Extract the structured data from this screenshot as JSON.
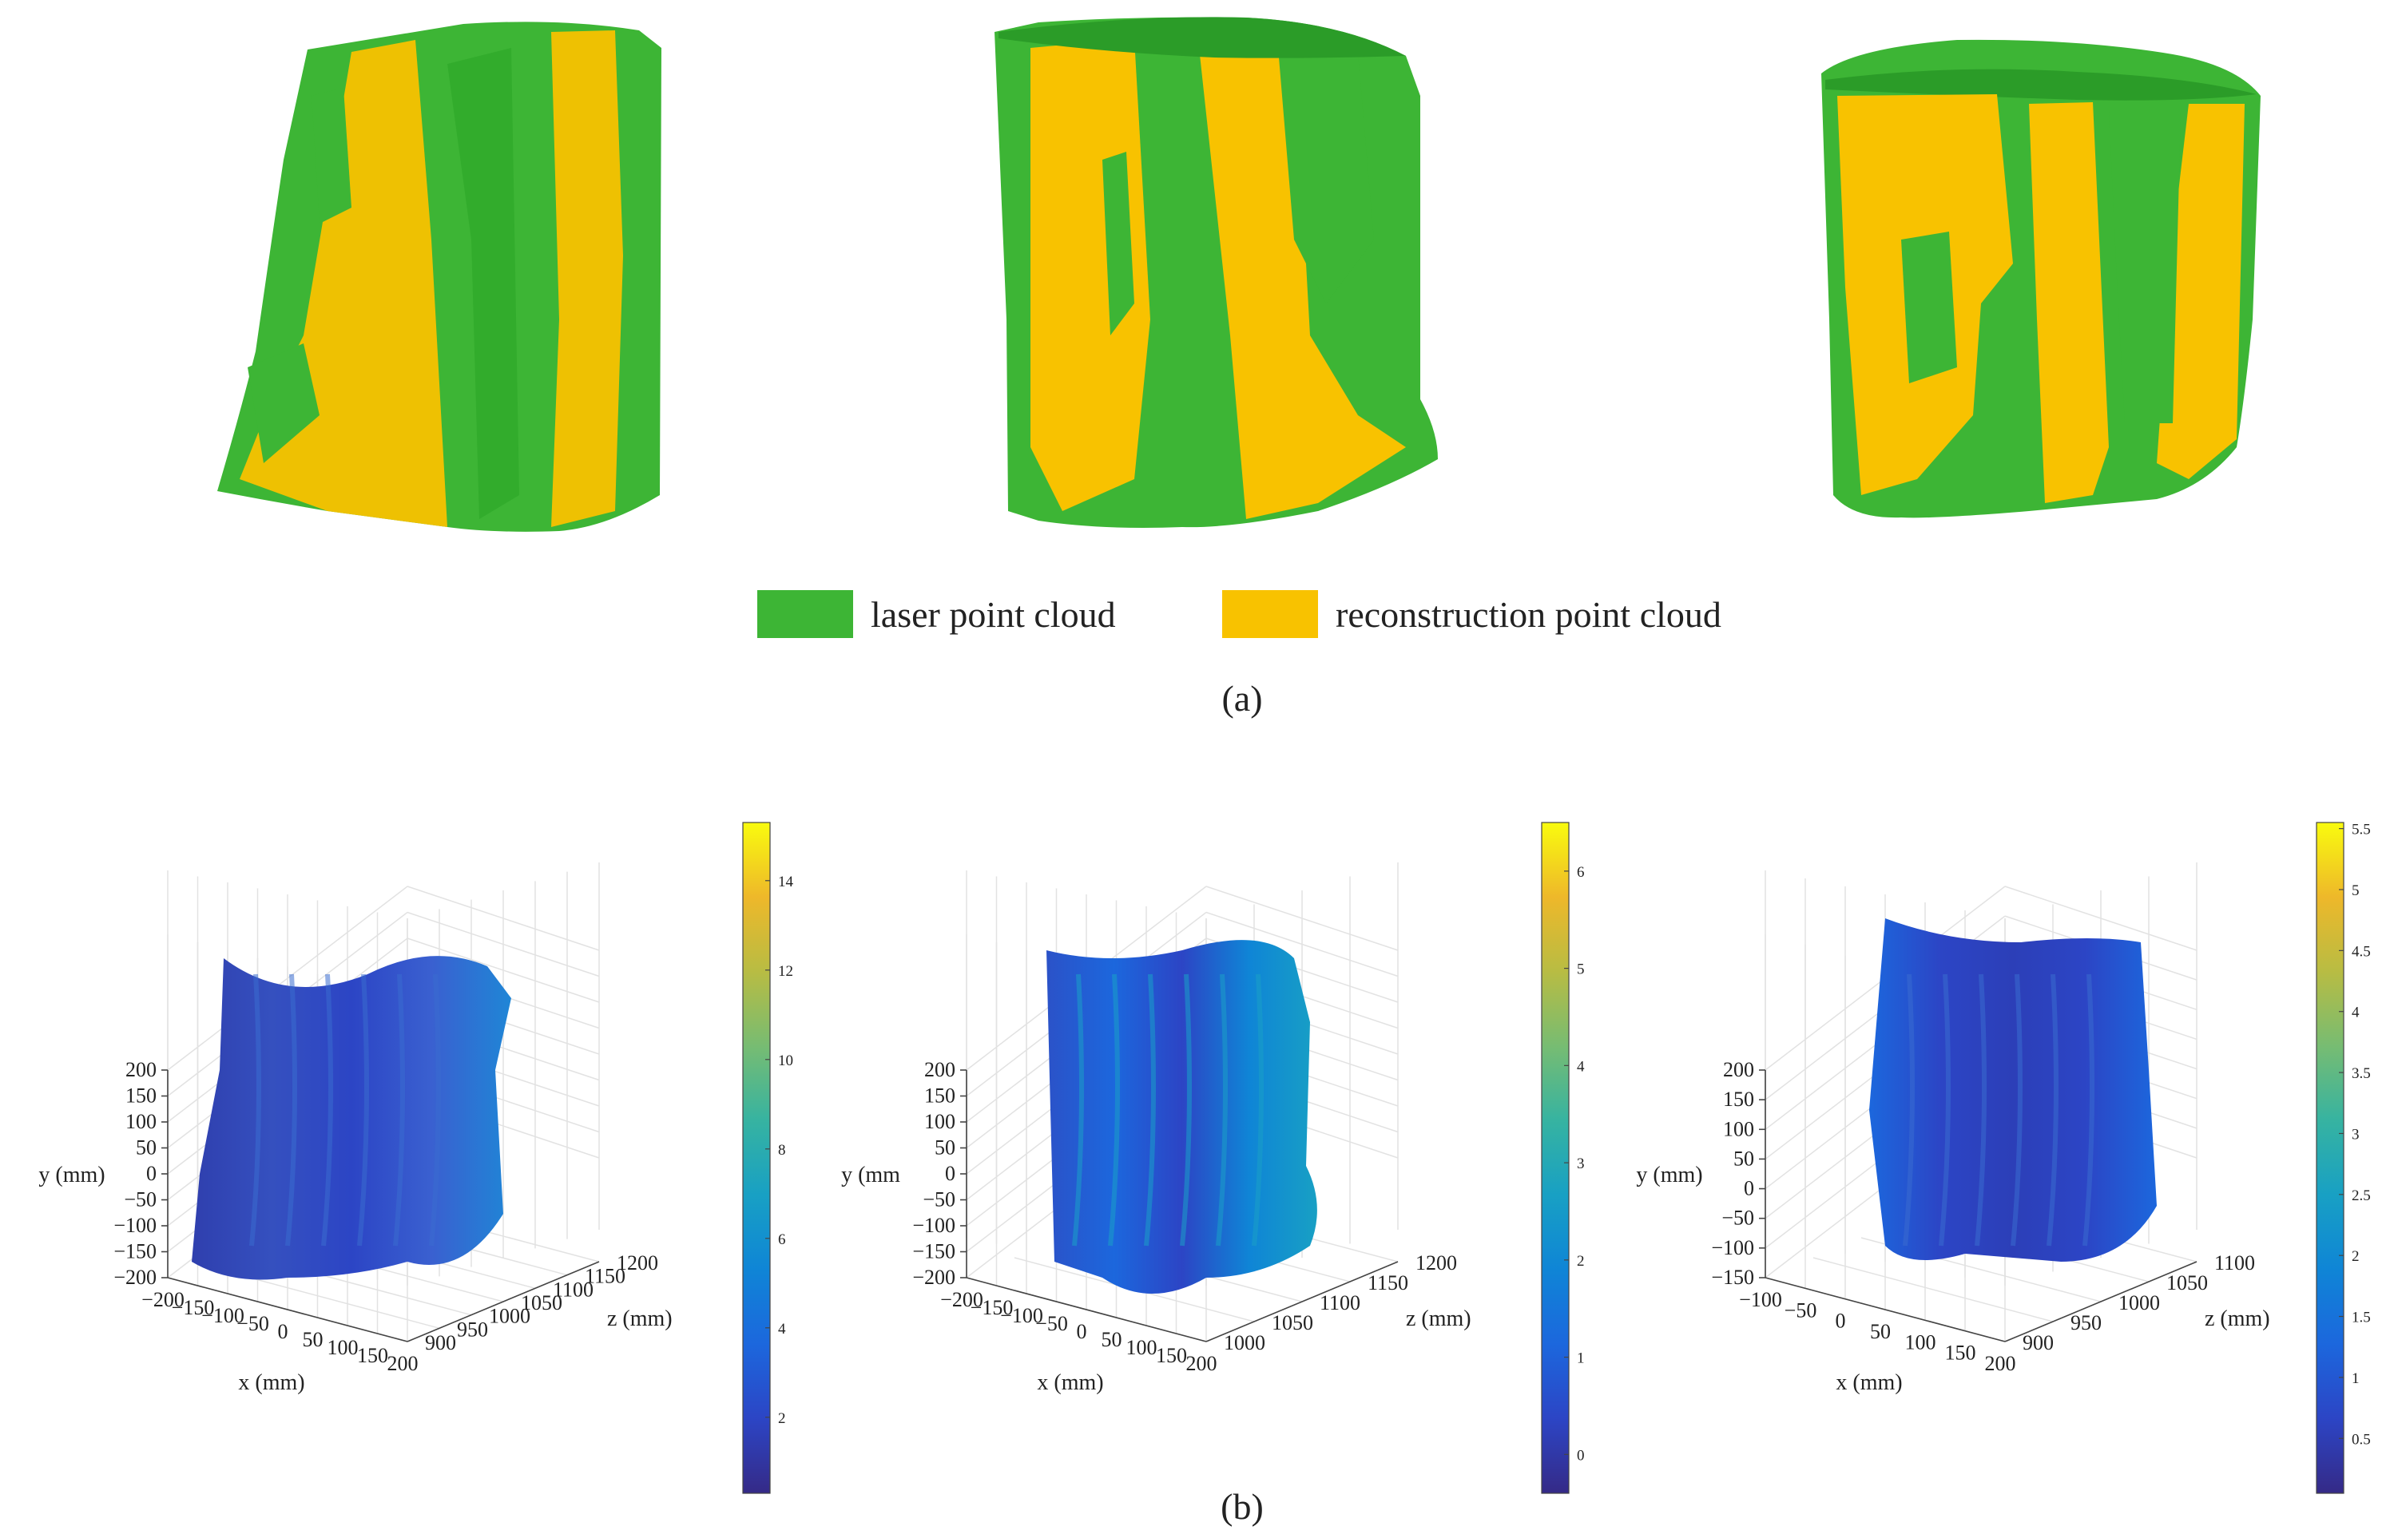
{
  "figure": {
    "panel_a": {
      "caption": "(a)",
      "legend": [
        {
          "label": "laser point cloud",
          "color": "#3db535"
        },
        {
          "label": "reconstruction point cloud",
          "color": "#f8c200"
        }
      ]
    },
    "panel_b": {
      "caption": "(b)"
    }
  },
  "chart_data": [
    {
      "type": "scatter",
      "title": "",
      "xlabel": "x (mm)",
      "ylabel": "y (mm)",
      "zlabel": "z (mm)",
      "xlim": [
        -200,
        200
      ],
      "ylim": [
        -200,
        200
      ],
      "zlim": [
        900,
        1200
      ],
      "x_ticks": [
        "−200",
        "−150",
        "−100",
        "−50",
        "0",
        "50",
        "100",
        "150",
        "200"
      ],
      "y_ticks": [
        "−200",
        "−150",
        "−100",
        "−50",
        "0",
        "50",
        "100",
        "150",
        "200"
      ],
      "z_ticks": [
        "900",
        "950",
        "1000",
        "1050",
        "1100",
        "1150",
        "1200"
      ],
      "colorbar": {
        "min": 0.3,
        "max": 15.3,
        "ticks": [
          2,
          4,
          6,
          8,
          10,
          12,
          14
        ],
        "tick_labels": [
          "2",
          "4",
          "6",
          "8",
          "10",
          "12",
          "14"
        ]
      },
      "grid": true
    },
    {
      "type": "scatter",
      "title": "",
      "xlabel": "x (mm)",
      "ylabel": "y (mm",
      "zlabel": "z (mm)",
      "xlim": [
        -200,
        200
      ],
      "ylim": [
        -200,
        200
      ],
      "zlim": [
        1000,
        1200
      ],
      "x_ticks": [
        "−200",
        "−150",
        "−100",
        "−50",
        "0",
        "50",
        "100",
        "150",
        "200"
      ],
      "y_ticks": [
        "−200",
        "−150",
        "−100",
        "−50",
        "0",
        "50",
        "100",
        "150",
        "200"
      ],
      "z_ticks": [
        "1000",
        "1050",
        "1100",
        "1150",
        "1200"
      ],
      "colorbar": {
        "min": -0.4,
        "max": 6.5,
        "ticks": [
          0,
          1,
          2,
          3,
          4,
          5,
          6
        ],
        "tick_labels": [
          "0",
          "1",
          "2",
          "3",
          "4",
          "5",
          "6"
        ]
      },
      "grid": true
    },
    {
      "type": "scatter",
      "title": "",
      "xlabel": "x (mm)",
      "ylabel": "y (mm)",
      "zlabel": "z (mm)",
      "xlim": [
        -100,
        200
      ],
      "ylim": [
        -150,
        200
      ],
      "zlim": [
        900,
        1100
      ],
      "x_ticks": [
        "−100",
        "−50",
        "0",
        "50",
        "100",
        "150",
        "200"
      ],
      "y_ticks": [
        "−150",
        "−100",
        "−50",
        "0",
        "50",
        "100",
        "150",
        "200"
      ],
      "z_ticks": [
        "900",
        "950",
        "1000",
        "1050",
        "1100"
      ],
      "colorbar": {
        "min": 0.05,
        "max": 5.55,
        "ticks": [
          0.5,
          1,
          1.5,
          2,
          2.5,
          3,
          3.5,
          4,
          4.5,
          5,
          5.5
        ],
        "tick_labels": [
          "0.5",
          "1",
          "1.5",
          "2",
          "2.5",
          "3",
          "3.5",
          "4",
          "4.5",
          "5",
          "5.5"
        ]
      },
      "grid": true
    }
  ]
}
